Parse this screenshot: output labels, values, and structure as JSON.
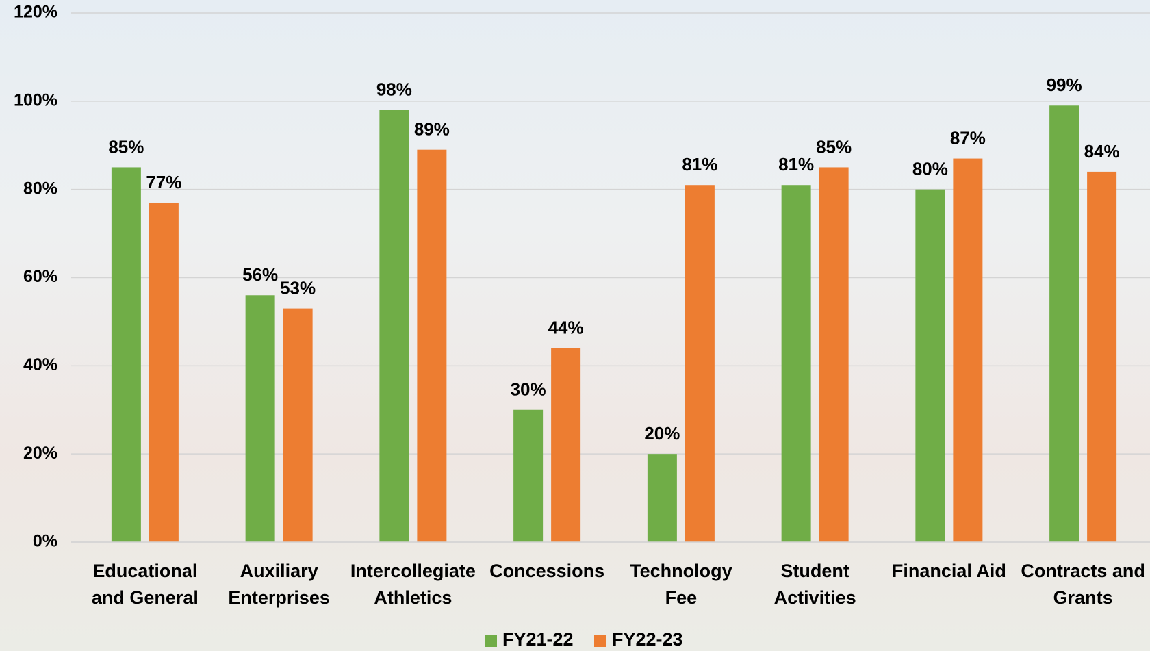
{
  "chart_data": {
    "type": "bar",
    "categories": [
      [
        "Educational",
        "and General"
      ],
      [
        "Auxiliary",
        "Enterprises"
      ],
      [
        "Intercollegiate",
        "Athletics"
      ],
      [
        "Concessions"
      ],
      [
        "Technology",
        "Fee"
      ],
      [
        "Student",
        "Activities"
      ],
      [
        "Financial Aid"
      ],
      [
        "Contracts and",
        "Grants"
      ]
    ],
    "series": [
      {
        "name": "FY21-22",
        "color": "#70ad47",
        "values": [
          85,
          56,
          98,
          30,
          20,
          81,
          80,
          99
        ],
        "value_labels": [
          "85%",
          "56%",
          "98%",
          "30%",
          "20%",
          "81%",
          "80%",
          "99%"
        ]
      },
      {
        "name": "FY22-23",
        "color": "#ed7d31",
        "values": [
          77,
          53,
          89,
          44,
          81,
          85,
          87,
          84
        ],
        "value_labels": [
          "77%",
          "53%",
          "89%",
          "44%",
          "81%",
          "85%",
          "87%",
          "84%"
        ]
      }
    ],
    "ylim": [
      0,
      120
    ],
    "yticks": [
      {
        "value": 0,
        "label": "0%"
      },
      {
        "value": 20,
        "label": "20%"
      },
      {
        "value": 40,
        "label": "40%"
      },
      {
        "value": 60,
        "label": "60%"
      },
      {
        "value": 80,
        "label": "80%"
      },
      {
        "value": 100,
        "label": "100%"
      },
      {
        "value": 120,
        "label": "120%"
      }
    ],
    "grid": true,
    "legend": "bottom"
  }
}
